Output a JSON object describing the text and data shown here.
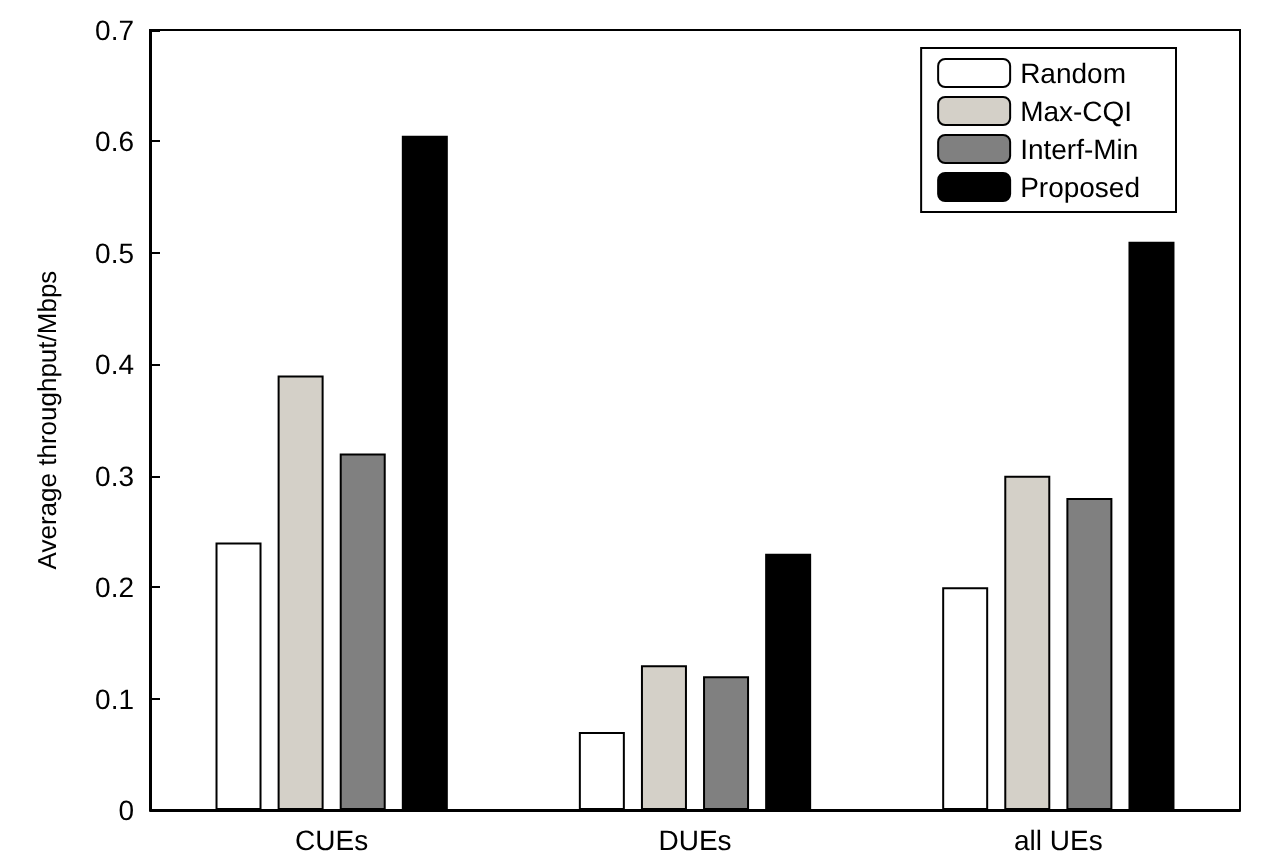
{
  "chart_data": {
    "type": "bar",
    "ylabel": "Average throughput/Mbps",
    "categories": [
      "CUEs",
      "DUEs",
      "all UEs"
    ],
    "series": [
      {
        "name": "Random",
        "color": "#ffffff",
        "values": [
          0.24,
          0.07,
          0.2
        ]
      },
      {
        "name": "Max-CQI",
        "color": "#d4d0c8",
        "values": [
          0.39,
          0.13,
          0.3
        ]
      },
      {
        "name": "Interf-Min",
        "color": "#808080",
        "values": [
          0.32,
          0.12,
          0.28
        ]
      },
      {
        "name": "Proposed",
        "color": "#000000",
        "values": [
          0.605,
          0.23,
          0.51
        ]
      }
    ],
    "ylim": [
      0,
      0.7
    ],
    "yticks": [
      0,
      0.1,
      0.2,
      0.3,
      0.4,
      0.5,
      0.6,
      0.7
    ],
    "grid": false,
    "legend": "top right"
  }
}
